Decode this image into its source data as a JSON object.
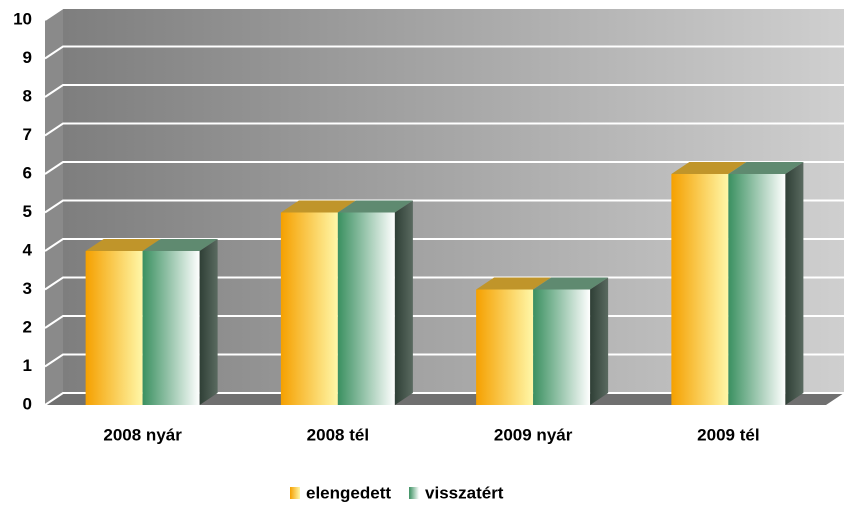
{
  "chart_data": {
    "type": "bar3d",
    "categories": [
      "2008 nyár",
      "2008 tél",
      "2009 nyár",
      "2009 tél"
    ],
    "series": [
      {
        "name": "elengedett",
        "color": "#f5a000",
        "values": [
          4,
          5,
          3,
          6
        ]
      },
      {
        "name": "visszatért",
        "color": "#3a9060",
        "values": [
          4,
          5,
          3,
          6
        ]
      }
    ],
    "ylim": [
      0,
      10
    ],
    "yticks": [
      0,
      1,
      2,
      3,
      4,
      5,
      6,
      7,
      8,
      9,
      10
    ],
    "grid": true,
    "legend": "bottom"
  }
}
